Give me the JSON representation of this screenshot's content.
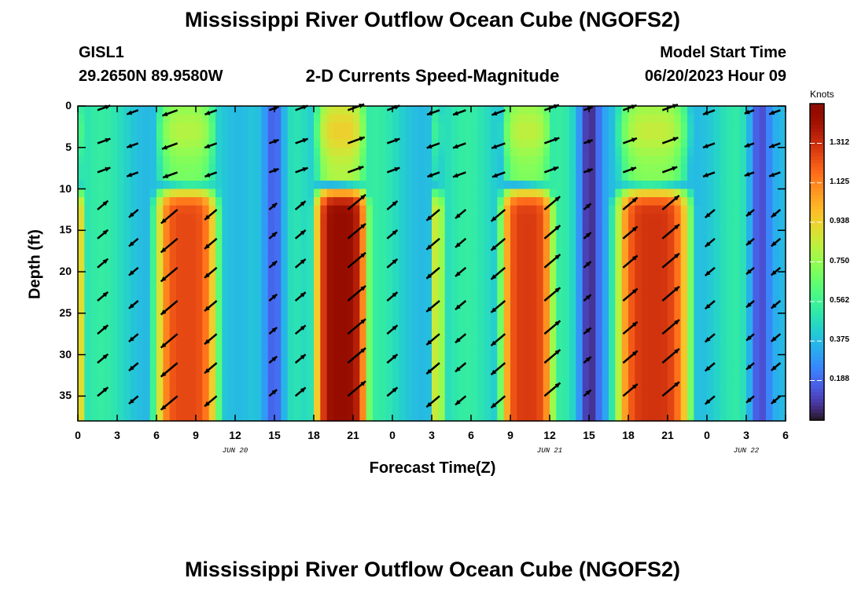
{
  "header": {
    "title": "Mississippi River Outflow Ocean Cube (NGOFS2)",
    "station_id": "GISL1",
    "station_coords": "29.2650N  89.9580W",
    "subtitle": "2-D Currents Speed-Magnitude",
    "model_start_label": "Model Start Time",
    "model_start_value": "06/20/2023 Hour 09"
  },
  "footer": {
    "title_repeat": "Mississippi River Outflow Ocean Cube (NGOFS2)"
  },
  "chart_data": {
    "type": "heatmap",
    "title": "2-D Currents Speed-Magnitude",
    "xlabel": "Forecast Time(Z)",
    "ylabel": "Depth (ft)",
    "x_tick_labels": [
      "0",
      "3",
      "6",
      "9",
      "12",
      "15",
      "18",
      "21",
      "0",
      "3",
      "6",
      "9",
      "12",
      "15",
      "18",
      "21",
      "0",
      "3",
      "6"
    ],
    "x_date_labels": [
      {
        "label": "JUN 20",
        "at_hour": 12
      },
      {
        "label": "JUN 21",
        "at_hour": 36
      },
      {
        "label": "JUN 22",
        "at_hour": 51
      }
    ],
    "x_range_hours": [
      0,
      54
    ],
    "y_tick_labels": [
      "0",
      "5",
      "10",
      "15",
      "20",
      "25",
      "30",
      "35"
    ],
    "y_range": [
      0,
      38
    ],
    "y_inverted": true,
    "colorbar": {
      "unit": "Knots",
      "ticks": [
        "1.312",
        "1.125",
        "0.938",
        "0.750",
        "0.562",
        "0.375",
        "0.188"
      ],
      "range": [
        0,
        1.5
      ],
      "colormap": "turbo"
    },
    "speed_peaks_knots": [
      {
        "center_hour": 0.2,
        "width_hours": 0.5,
        "peak": 0.9
      },
      {
        "center_hour": 8.3,
        "width_hours": 2.7,
        "peak": 1.25
      },
      {
        "center_hour": 20.1,
        "width_hours": 2.3,
        "peak": 1.45
      },
      {
        "center_hour": 27.4,
        "width_hours": 0.6,
        "peak": 0.85
      },
      {
        "center_hour": 34.3,
        "width_hours": 2.3,
        "peak": 1.28
      },
      {
        "center_hour": 43.9,
        "width_hours": 3.2,
        "peak": 1.3
      }
    ],
    "speed_minima_hours": [
      15,
      39,
      52
    ],
    "arrow_columns_hours": [
      1.5,
      4.6,
      7.6,
      10.6,
      14.6,
      16.6,
      20.6,
      23.6,
      27.6,
      29.6,
      32.6,
      35.6,
      38.6,
      41.6,
      44.6,
      48.6,
      51.6,
      53.6
    ],
    "arrow_rows_ft": [
      0.5,
      4.5,
      8.0,
      12.5,
      16.0,
      19.5,
      23.5,
      27.5,
      31.0,
      35.0
    ]
  }
}
